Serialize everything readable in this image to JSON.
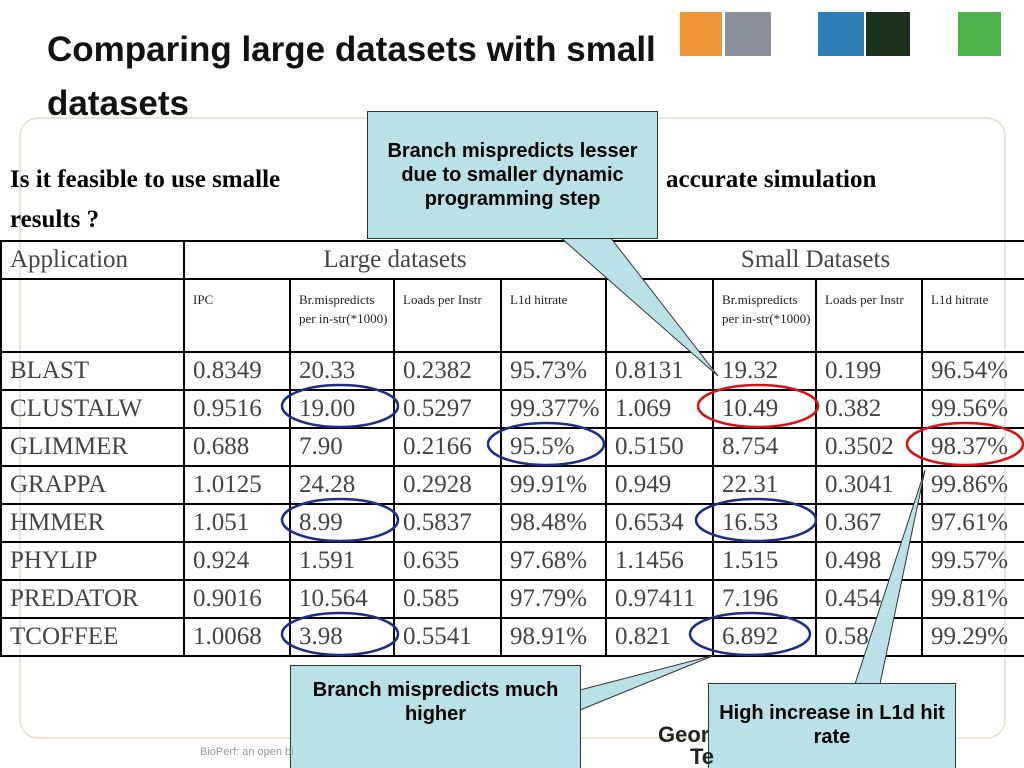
{
  "slide": {
    "title": [
      "Comparing large datasets with small",
      "datasets"
    ],
    "question": [
      "Is it feasible to use smalle",
      "accurate simulation",
      "results ?"
    ],
    "footer": "BioPerf: an open bi",
    "logo_text": [
      "Geor",
      "Te"
    ],
    "table": {
      "header": [
        "Application",
        "Large datasets",
        "Small Datasets"
      ],
      "columns": [
        "",
        "IPC",
        "Br.mispredicts per in-str(*1000)",
        "Loads per Instr",
        "L1d hitrate",
        "",
        "Br.mispredicts per in-str(*1000)",
        "Loads per Instr",
        "L1d hitrate"
      ],
      "rows": [
        [
          "BLAST",
          "0.8349",
          "20.33",
          "0.2382",
          "95.73%",
          "0.8131",
          "19.32",
          "0.199",
          "96.54%"
        ],
        [
          "CLUSTALW",
          "0.9516",
          "19.00",
          "0.5297",
          "99.377%",
          "1.069",
          "10.49",
          "0.382",
          "99.56%"
        ],
        [
          "GLIMMER",
          "0.688",
          "7.90",
          "0.2166",
          "95.5%",
          "0.5150",
          "8.754",
          "0.3502",
          "98.37%"
        ],
        [
          "GRAPPA",
          "1.0125",
          "24.28",
          "0.2928",
          "99.91%",
          "0.949",
          "22.31",
          "0.3041",
          "99.86%"
        ],
        [
          "HMMER",
          "1.051",
          "8.99",
          "0.5837",
          "98.48%",
          "0.6534",
          "16.53",
          "0.367",
          "97.61%"
        ],
        [
          "PHYLIP",
          "0.924",
          "1.591",
          "0.635",
          "97.68%",
          "1.1456",
          "1.515",
          "0.498",
          "99.57%"
        ],
        [
          "PREDATOR",
          "0.9016",
          "10.564",
          "0.585",
          "97.79%",
          "0.97411",
          "7.196",
          "0.454",
          "99.81%"
        ],
        [
          "TCOFFEE",
          "1.0068",
          "3.98",
          "0.5541",
          "98.91%",
          "0.821",
          "6.892",
          "0.58",
          "99.29%"
        ]
      ]
    },
    "callouts": [
      "Branch mispredicts lesser due to smaller dynamic programming step",
      "Branch mispredicts much higher",
      "High increase in L1d hit rate"
    ]
  }
}
